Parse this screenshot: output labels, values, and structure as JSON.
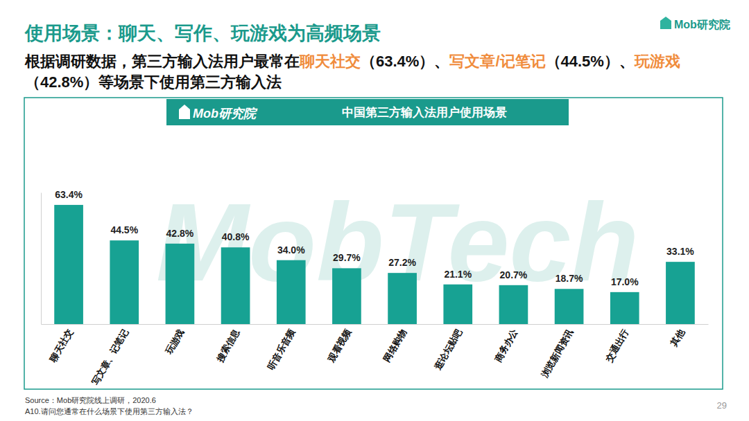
{
  "title": "使用场景：聊天、写作、玩游戏为高频场景",
  "brand": "Mob研究院",
  "subtitle": [
    "根据调研数据，第三方输入法用户最常在",
    "聊天社交",
    "（63.4%）、",
    "写文章/记笔记",
    "（44.5%）、",
    "玩游戏",
    "（42.8%）等场景下使用第三方输入法"
  ],
  "watermark": "MobTech",
  "source": "Source：Mob研究院线上调研，2020.6",
  "question": "A10.请问您通常在什么场景下使用第三方输入法？",
  "page_number": "29",
  "chart_data": {
    "type": "bar",
    "title": "中国第三方输入法用户使用场景",
    "categories": [
      "聊天社交",
      "写文章、记笔记",
      "玩游戏",
      "搜索信息",
      "听音乐音频",
      "观看视频",
      "网络购物",
      "逛论坛贴吧",
      "商务办公",
      "浏览新闻资讯",
      "交通出行",
      "其他"
    ],
    "values": [
      63.4,
      44.5,
      42.8,
      40.8,
      34.0,
      29.7,
      27.2,
      21.1,
      20.7,
      18.7,
      17.0,
      33.1
    ],
    "value_labels": [
      "63.4%",
      "44.5%",
      "42.8%",
      "40.8%",
      "34.0%",
      "29.7%",
      "27.2%",
      "21.1%",
      "20.7%",
      "18.7%",
      "17.0%",
      "33.1%"
    ],
    "color": "#17a293",
    "ylim": [
      0,
      70
    ],
    "yticks": [],
    "data_labels": true,
    "tick_labels": "x",
    "grid": false
  }
}
